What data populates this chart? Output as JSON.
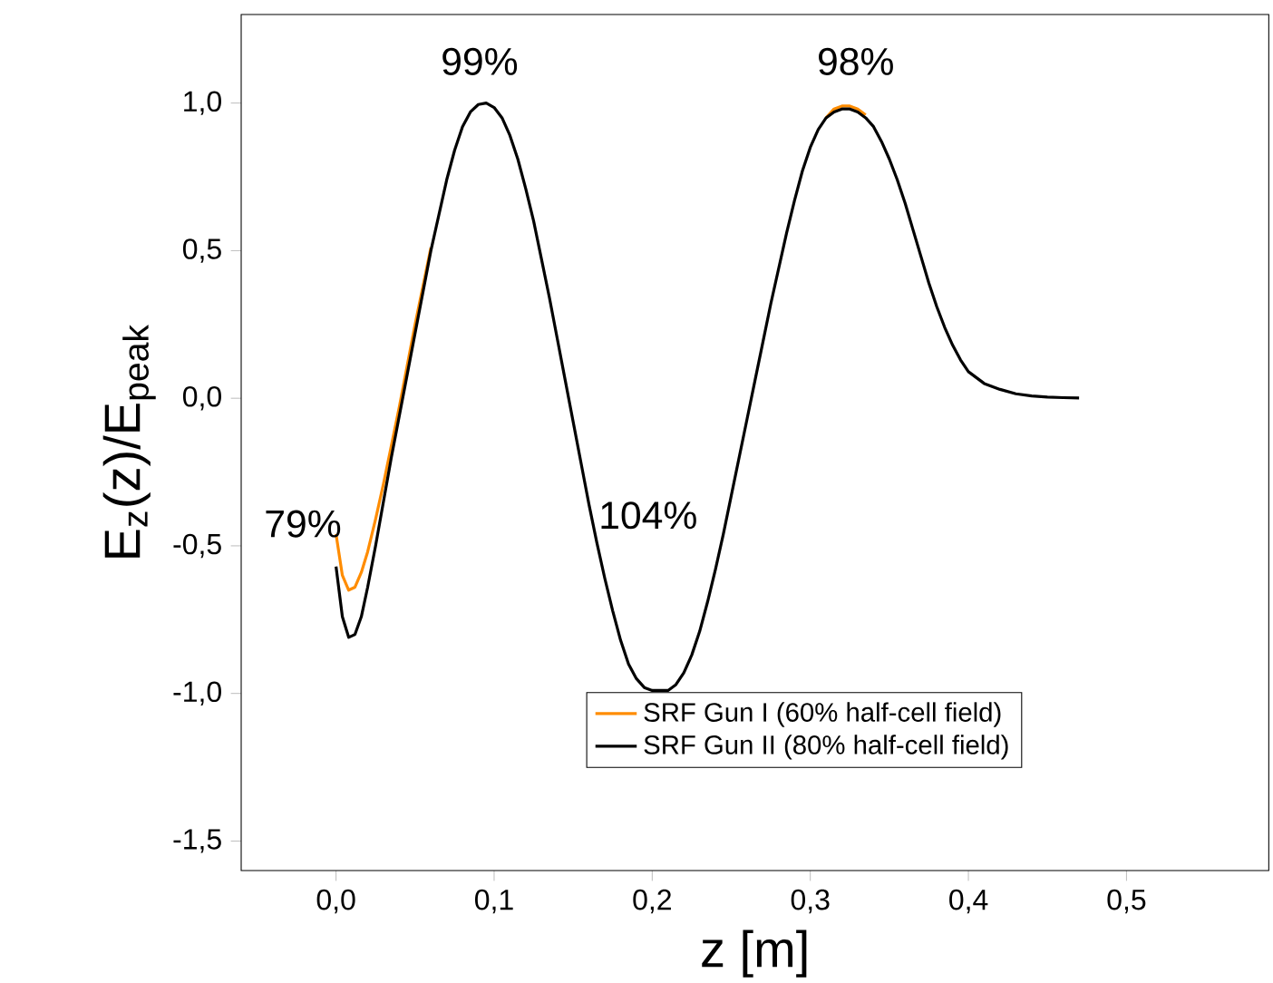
{
  "chart_data": {
    "type": "line",
    "xlabel": "z [m]",
    "ylabel": "E$_{z}$(z)/E$_{peak}$",
    "xlim": [
      -0.06,
      0.59
    ],
    "ylim": [
      -1.6,
      1.3
    ],
    "xticks": [
      {
        "value": 0,
        "label": "0,0"
      },
      {
        "value": 0.1,
        "label": "0,1"
      },
      {
        "value": 0.2,
        "label": "0,2"
      },
      {
        "value": 0.3,
        "label": "0,3"
      },
      {
        "value": 0.4,
        "label": "0,4"
      },
      {
        "value": 0.5,
        "label": "0,5"
      }
    ],
    "yticks": [
      {
        "value": -1.5,
        "label": "-1,5"
      },
      {
        "value": -1,
        "label": "-1,0"
      },
      {
        "value": -0.5,
        "label": "-0,5"
      },
      {
        "value": 0,
        "label": "0,0"
      },
      {
        "value": 0.5,
        "label": "0,5"
      },
      {
        "value": 1,
        "label": "1,0"
      }
    ],
    "grid": false,
    "legend": "bottom right",
    "marker": "none",
    "line_style": "solid",
    "series": [
      {
        "name": "SRF Gun I  (60% half-cell field)",
        "color": "#ff8c00",
        "x": [
          0,
          0.004,
          0.008,
          0.012,
          0.016,
          0.02,
          0.025,
          0.03,
          0.035,
          0.04,
          0.045,
          0.05,
          0.055,
          0.06,
          0.065,
          0.07,
          0.075,
          0.08,
          0.085,
          0.09,
          0.095,
          0.1,
          0.105,
          0.11,
          0.115,
          0.12,
          0.125,
          0.13,
          0.135,
          0.14,
          0.145,
          0.15,
          0.155,
          0.16,
          0.165,
          0.17,
          0.175,
          0.18,
          0.185,
          0.19,
          0.195,
          0.2,
          0.205,
          0.21,
          0.215,
          0.22,
          0.225,
          0.23,
          0.235,
          0.24,
          0.245,
          0.25,
          0.255,
          0.26,
          0.265,
          0.27,
          0.275,
          0.28,
          0.285,
          0.29,
          0.295,
          0.3,
          0.305,
          0.31,
          0.315,
          0.32,
          0.325,
          0.33,
          0.335
        ],
        "values": [
          -0.46,
          -0.6,
          -0.65,
          -0.64,
          -0.59,
          -0.52,
          -0.41,
          -0.29,
          -0.16,
          -0.03,
          0.11,
          0.25,
          0.38,
          0.51,
          null,
          null,
          null,
          null,
          null,
          null,
          null,
          null,
          null,
          null,
          null,
          null,
          null,
          null,
          null,
          null,
          null,
          null,
          null,
          null,
          null,
          null,
          null,
          null,
          null,
          null,
          null,
          null,
          null,
          null,
          null,
          null,
          null,
          null,
          null,
          null,
          null,
          null,
          null,
          null,
          null,
          null,
          null,
          null,
          null,
          null,
          null,
          null,
          null,
          0.95,
          0.98,
          0.99,
          0.99,
          0.98,
          0.96
        ]
      },
      {
        "name": "SRF Gun II (80% half-cell field)",
        "color": "#000000",
        "x": [
          0,
          0.004,
          0.008,
          0.012,
          0.016,
          0.02,
          0.025,
          0.03,
          0.035,
          0.04,
          0.045,
          0.05,
          0.055,
          0.06,
          0.065,
          0.07,
          0.075,
          0.08,
          0.085,
          0.09,
          0.095,
          0.1,
          0.105,
          0.11,
          0.115,
          0.12,
          0.125,
          0.13,
          0.135,
          0.14,
          0.145,
          0.15,
          0.155,
          0.16,
          0.165,
          0.17,
          0.175,
          0.18,
          0.185,
          0.19,
          0.195,
          0.2,
          0.205,
          0.21,
          0.215,
          0.22,
          0.225,
          0.23,
          0.235,
          0.24,
          0.245,
          0.25,
          0.255,
          0.26,
          0.265,
          0.27,
          0.275,
          0.28,
          0.285,
          0.29,
          0.295,
          0.3,
          0.305,
          0.31,
          0.315,
          0.32,
          0.325,
          0.33,
          0.335,
          0.34,
          0.345,
          0.35,
          0.355,
          0.36,
          0.365,
          0.37,
          0.375,
          0.38,
          0.385,
          0.39,
          0.395,
          0.4,
          0.41,
          0.42,
          0.43,
          0.44,
          0.45,
          0.46,
          0.47
        ],
        "values": [
          -0.57,
          -0.74,
          -0.81,
          -0.8,
          -0.74,
          -0.64,
          -0.5,
          -0.35,
          -0.2,
          -0.06,
          0.08,
          0.22,
          0.36,
          0.5,
          0.62,
          0.74,
          0.84,
          0.92,
          0.97,
          0.995,
          1.0,
          0.985,
          0.95,
          0.89,
          0.81,
          0.71,
          0.6,
          0.47,
          0.34,
          0.2,
          0.06,
          -0.08,
          -0.22,
          -0.36,
          -0.49,
          -0.61,
          -0.72,
          -0.82,
          -0.9,
          -0.95,
          -0.98,
          -0.99,
          -0.99,
          -0.99,
          -0.97,
          -0.93,
          -0.87,
          -0.79,
          -0.69,
          -0.58,
          -0.46,
          -0.33,
          -0.2,
          -0.07,
          0.06,
          0.19,
          0.32,
          0.44,
          0.56,
          0.67,
          0.77,
          0.85,
          0.91,
          0.95,
          0.97,
          0.98,
          0.98,
          0.97,
          0.95,
          0.92,
          0.87,
          0.81,
          0.74,
          0.66,
          0.57,
          0.48,
          0.39,
          0.31,
          0.24,
          0.18,
          0.13,
          0.09,
          0.05,
          0.03,
          0.015,
          0.008,
          0.004,
          0.002,
          0.001
        ]
      }
    ],
    "annotations": [
      "79%",
      "99%",
      "104%",
      "98%"
    ]
  }
}
